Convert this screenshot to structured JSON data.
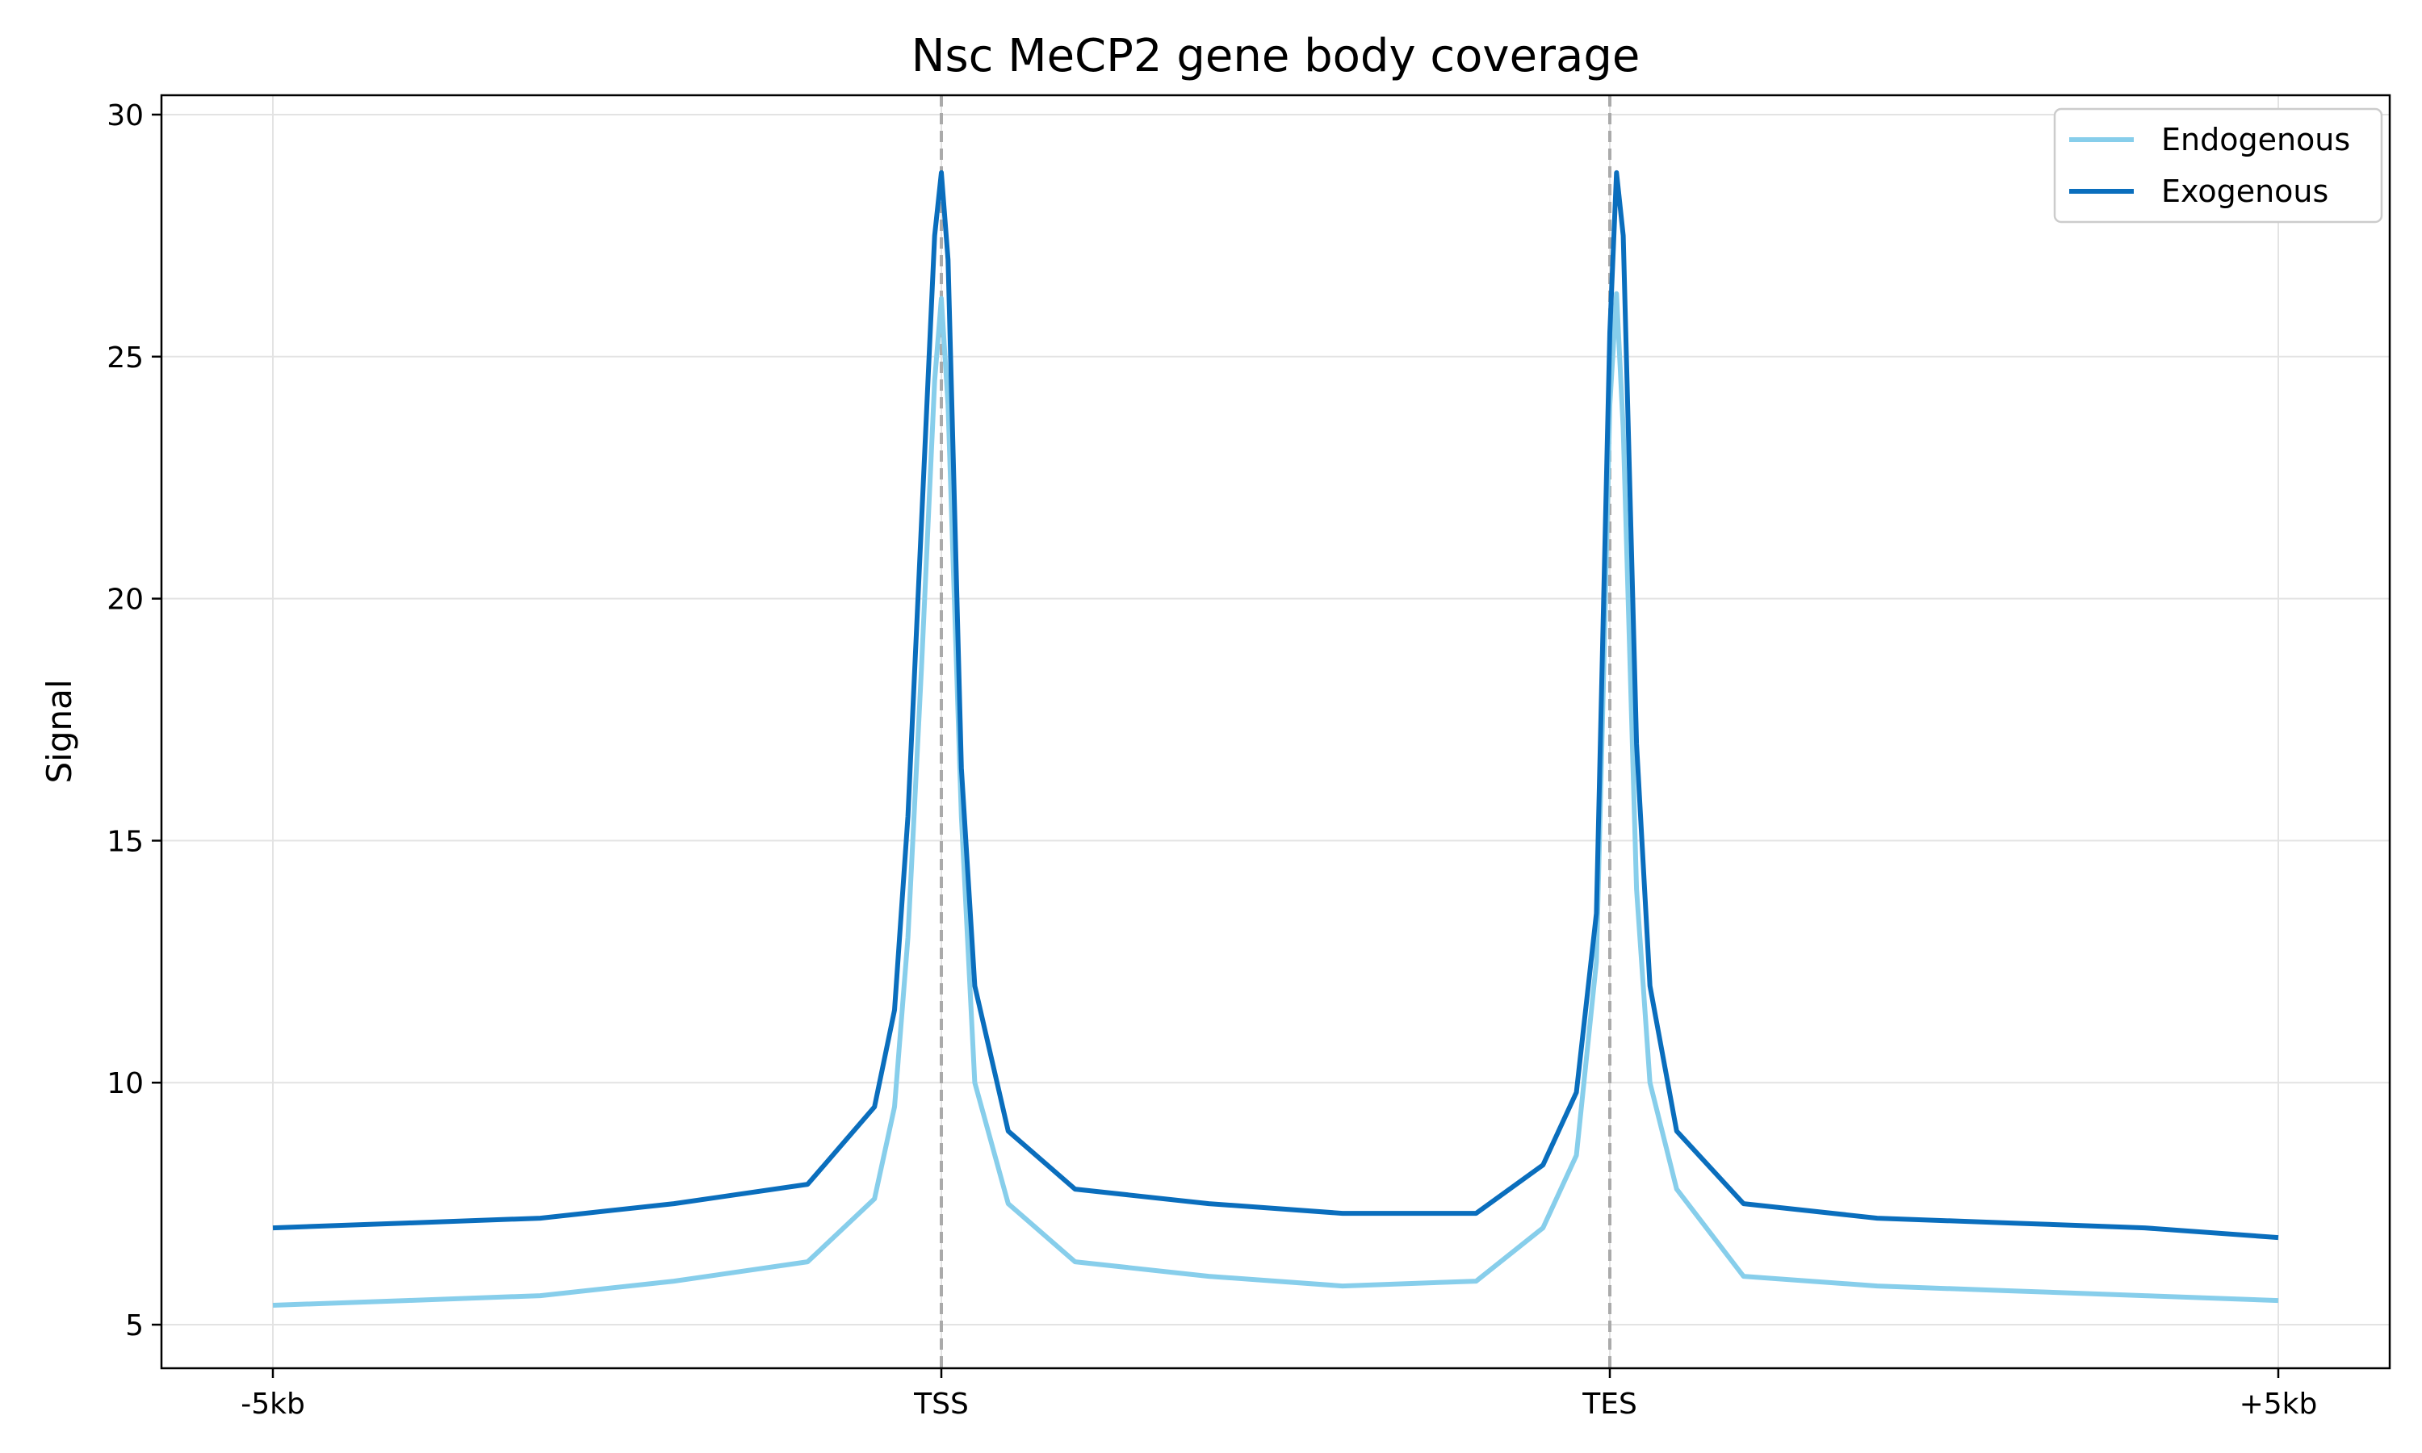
{
  "chart_data": {
    "type": "line",
    "title": "Nsc MeCP2 gene body coverage",
    "xlabel": "",
    "ylabel": "Signal",
    "x_tick_labels": [
      "-5kb",
      "TSS",
      "TES",
      "+5kb"
    ],
    "y_ticks": [
      5,
      10,
      15,
      20,
      25,
      30
    ],
    "ylim": [
      4.1,
      30.4
    ],
    "grid": true,
    "legend_position": "top-right",
    "reference_lines": [
      "TSS",
      "TES"
    ],
    "x": [
      0,
      20,
      40,
      60,
      80,
      90,
      93,
      95,
      97,
      99,
      100,
      101,
      103,
      105,
      110,
      120,
      140,
      160,
      180,
      190,
      195,
      198,
      199,
      200,
      201,
      202,
      204,
      206,
      210,
      220,
      240,
      260,
      280,
      300
    ],
    "series": [
      {
        "name": "Endogenous",
        "color": "#87ceeb",
        "values": [
          5.4,
          5.5,
          5.6,
          5.9,
          6.3,
          7.6,
          9.5,
          13.0,
          18.5,
          24.5,
          26.2,
          24.0,
          15.5,
          10.0,
          7.5,
          6.3,
          6.0,
          5.8,
          5.9,
          7.0,
          8.5,
          12.5,
          18.0,
          24.0,
          26.3,
          23.5,
          14.0,
          10.0,
          7.8,
          6.0,
          5.8,
          5.7,
          5.6,
          5.5
        ]
      },
      {
        "name": "Exogenous",
        "color": "#0a6ebd",
        "values": [
          7.0,
          7.1,
          7.2,
          7.5,
          7.9,
          9.5,
          11.5,
          15.5,
          21.5,
          27.5,
          28.8,
          27.0,
          16.5,
          12.0,
          9.0,
          7.8,
          7.5,
          7.3,
          7.3,
          8.3,
          9.8,
          13.5,
          19.5,
          25.5,
          28.8,
          27.5,
          17.0,
          12.0,
          9.0,
          7.5,
          7.2,
          7.1,
          7.0,
          6.8
        ]
      }
    ]
  }
}
